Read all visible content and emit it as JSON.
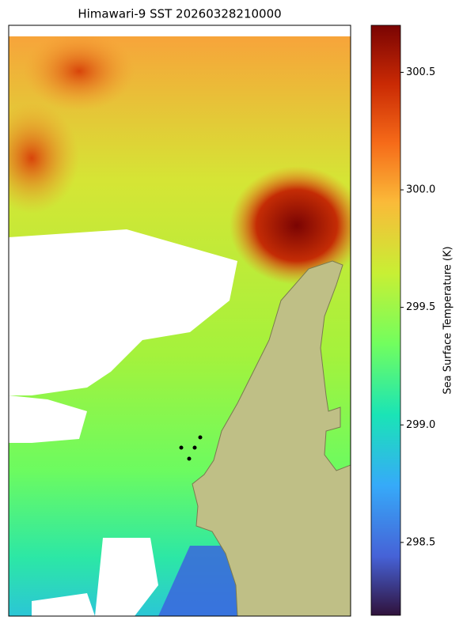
{
  "chart_data": {
    "type": "heatmap",
    "title": "Himawari-9 SST 20260328210000",
    "colorbar_label": "Sea Surface Temperature (K)",
    "clim": [
      298.19,
      300.7
    ],
    "cticks": [
      {
        "value": 298.5,
        "label": "298.5"
      },
      {
        "value": 299,
        "label": "299.0"
      },
      {
        "value": 299.5,
        "label": "299.5"
      },
      {
        "value": 300,
        "label": "300.0"
      },
      {
        "value": 300.5,
        "label": "300.5"
      }
    ]
  }
}
